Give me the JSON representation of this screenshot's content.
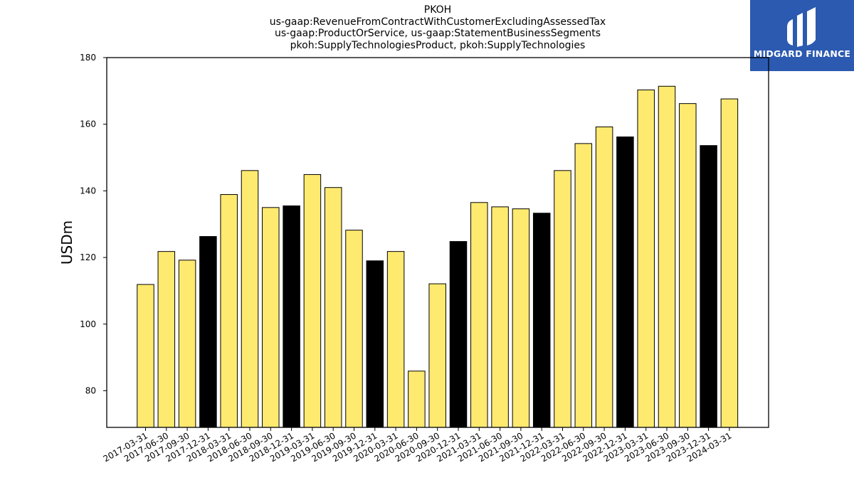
{
  "chart_data": {
    "type": "bar",
    "title_lines": [
      "PKOH",
      "us-gaap:RevenueFromContractWithCustomerExcludingAssessedTax",
      "us-gaap:ProductOrService, us-gaap:StatementBusinessSegments",
      "pkoh:SupplyTechnologiesProduct, pkoh:SupplyTechnologies"
    ],
    "ylabel": "USDm",
    "xlabel": "",
    "ylim": [
      69,
      180
    ],
    "yticks": [
      80,
      100,
      120,
      140,
      160,
      180
    ],
    "categories": [
      "2017-03-31",
      "2017-06-30",
      "2017-09-30",
      "2017-12-31",
      "2018-03-31",
      "2018-06-30",
      "2018-09-30",
      "2018-12-31",
      "2019-03-31",
      "2019-06-30",
      "2019-09-30",
      "2019-12-31",
      "2020-03-31",
      "2020-06-30",
      "2020-09-30",
      "2020-12-31",
      "2021-03-31",
      "2021-06-30",
      "2021-09-30",
      "2021-12-31",
      "2022-03-31",
      "2022-06-30",
      "2022-09-30",
      "2022-12-31",
      "2023-03-31",
      "2023-06-30",
      "2023-09-30",
      "2023-12-31",
      "2024-03-31"
    ],
    "values": [
      111.9,
      121.8,
      119.2,
      126.3,
      138.9,
      146.1,
      135.0,
      135.5,
      144.9,
      141.0,
      128.2,
      119.0,
      121.8,
      85.9,
      112.1,
      124.8,
      136.5,
      135.2,
      134.6,
      133.3,
      146.1,
      154.2,
      159.2,
      156.2,
      170.3,
      171.4,
      166.2,
      153.6,
      167.6
    ],
    "fill_colors": [
      "#ffea70",
      "#ffea70",
      "#ffea70",
      "#000000",
      "#ffea70",
      "#ffea70",
      "#ffea70",
      "#000000",
      "#ffea70",
      "#ffea70",
      "#ffea70",
      "#000000",
      "#ffea70",
      "#ffea70",
      "#ffea70",
      "#000000",
      "#ffea70",
      "#ffea70",
      "#ffea70",
      "#000000",
      "#ffea70",
      "#ffea70",
      "#ffea70",
      "#000000",
      "#ffea70",
      "#ffea70",
      "#ffea70",
      "#000000",
      "#ffea70"
    ],
    "grid": false,
    "legend": "none"
  },
  "logo": {
    "text": "MIDGARD FINANCE",
    "background": "#2b5ab0"
  }
}
